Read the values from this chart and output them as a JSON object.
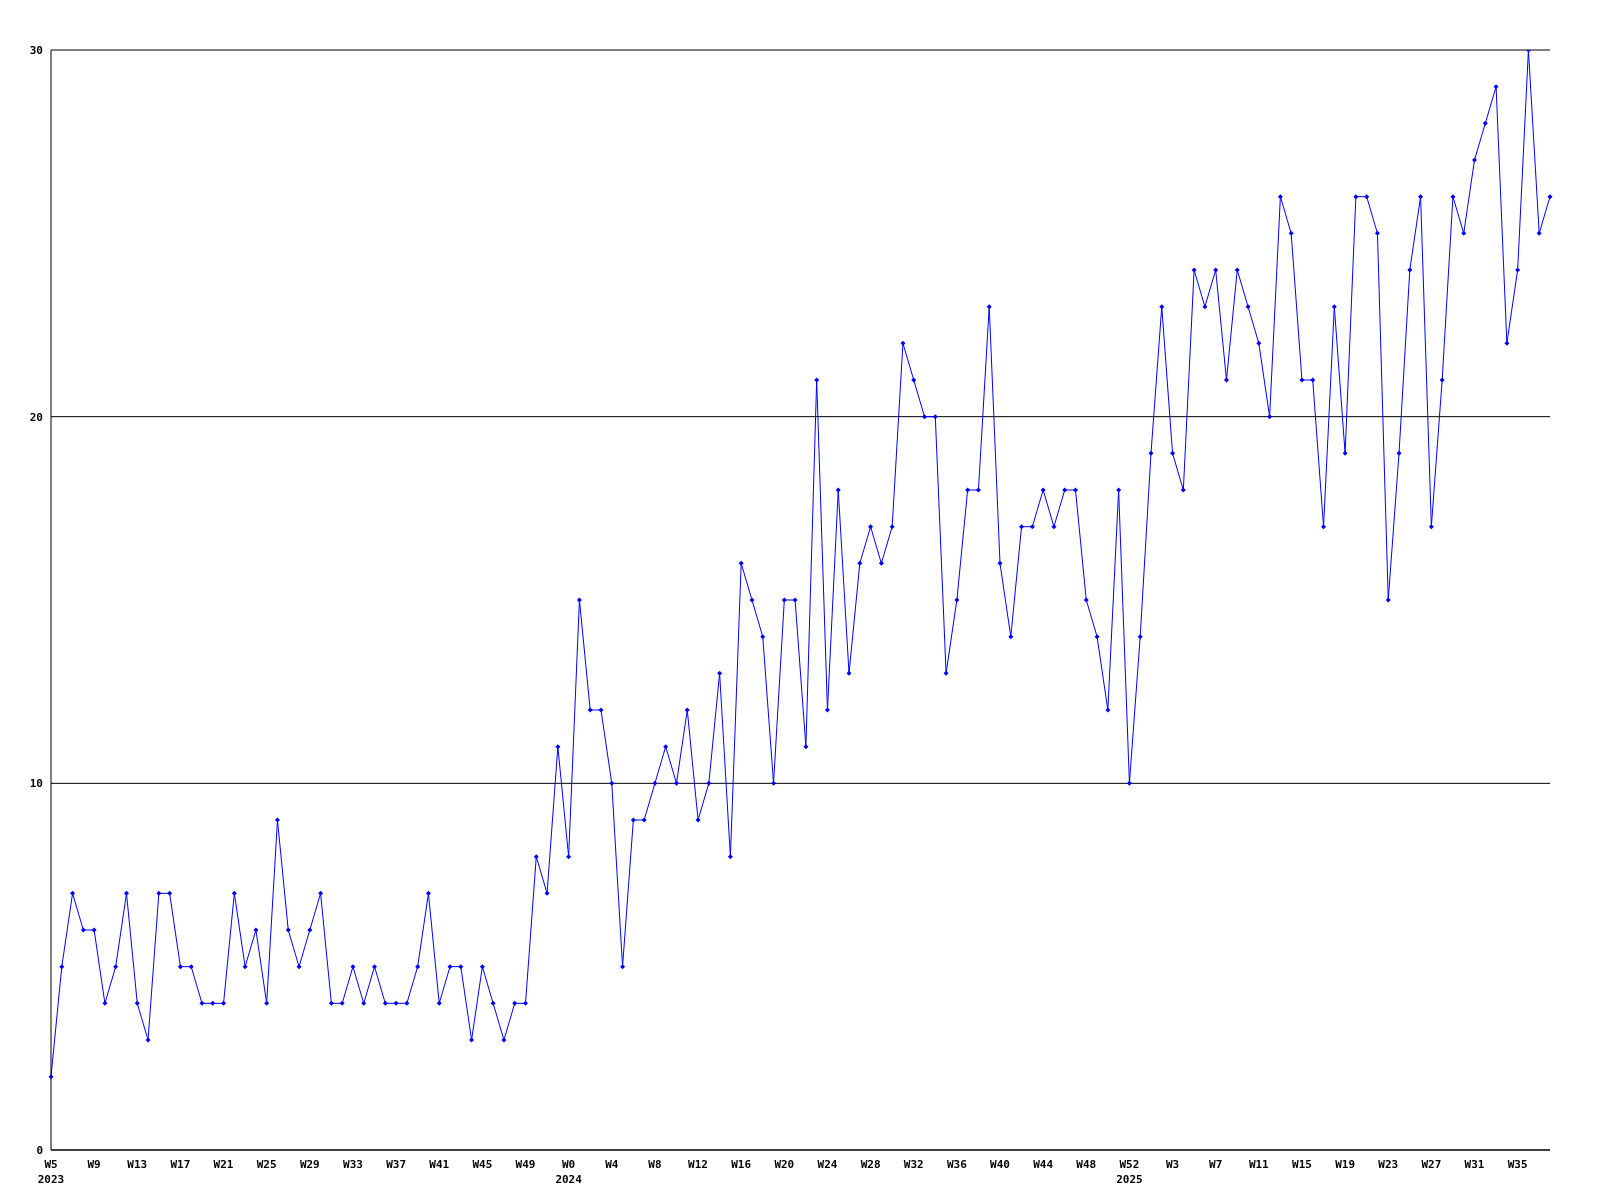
{
  "chart_data": {
    "type": "line",
    "categories": [
      "W5\n2023",
      null,
      null,
      null,
      "W9",
      null,
      null,
      null,
      "W13",
      null,
      null,
      null,
      "W17",
      null,
      null,
      null,
      "W21",
      null,
      null,
      null,
      "W25",
      null,
      null,
      null,
      "W29",
      null,
      null,
      null,
      "W33",
      null,
      null,
      null,
      "W37",
      null,
      null,
      null,
      "W41",
      null,
      null,
      null,
      "W45",
      null,
      null,
      null,
      "W49",
      null,
      null,
      null,
      "W0\n2024",
      null,
      null,
      null,
      "W4",
      null,
      null,
      null,
      "W8",
      null,
      null,
      null,
      "W12",
      null,
      null,
      null,
      "W16",
      null,
      null,
      null,
      "W20",
      null,
      null,
      null,
      "W24",
      null,
      null,
      null,
      "W28",
      null,
      null,
      null,
      "W32",
      null,
      null,
      null,
      "W36",
      null,
      null,
      null,
      "W40",
      null,
      null,
      null,
      "W44",
      null,
      null,
      null,
      "W48",
      null,
      null,
      null,
      "W52\n2025",
      null,
      null,
      null,
      "W3",
      null,
      null,
      null,
      "W7",
      null,
      null,
      null,
      "W11",
      null,
      null,
      null,
      "W15",
      null,
      null,
      null,
      "W19",
      null,
      null,
      null,
      "W23",
      null,
      null,
      null,
      "W27",
      null,
      null,
      null,
      "W31",
      null,
      null,
      null,
      "W35",
      null,
      null,
      null
    ],
    "series": [
      {
        "color": "#0000ff",
        "values": [
          2,
          5,
          7,
          6,
          6,
          4,
          5,
          7,
          4,
          3,
          7,
          7,
          5,
          5,
          4,
          4,
          4,
          7,
          5,
          6,
          4,
          9,
          6,
          5,
          6,
          7,
          4,
          4,
          5,
          4,
          5,
          4,
          4,
          4,
          5,
          7,
          4,
          5,
          5,
          3,
          5,
          4,
          3,
          4,
          4,
          8,
          7,
          11,
          8,
          15,
          12,
          12,
          10,
          5,
          9,
          9,
          10,
          11,
          10,
          12,
          9,
          10,
          13,
          8,
          16,
          15,
          14,
          10,
          15,
          15,
          11,
          21,
          12,
          18,
          13,
          16,
          17,
          16,
          17,
          22,
          21,
          20,
          20,
          13,
          15,
          18,
          18,
          23,
          16,
          14,
          17,
          17,
          18,
          17,
          18,
          18,
          15,
          14,
          12,
          18,
          10,
          14,
          19,
          23,
          19,
          18,
          24,
          23,
          24,
          21,
          24,
          23,
          22,
          20,
          26,
          25,
          21,
          21,
          17,
          23,
          19,
          26,
          26,
          25,
          15,
          19,
          24,
          26,
          17,
          21,
          26,
          25,
          27,
          28,
          29,
          22,
          24,
          30,
          25,
          26
        ]
      }
    ],
    "ylim": [
      0,
      30
    ],
    "yticks": [
      0,
      10,
      20,
      30
    ],
    "grid": "y",
    "marker": "diamond",
    "line_style": "solid"
  }
}
